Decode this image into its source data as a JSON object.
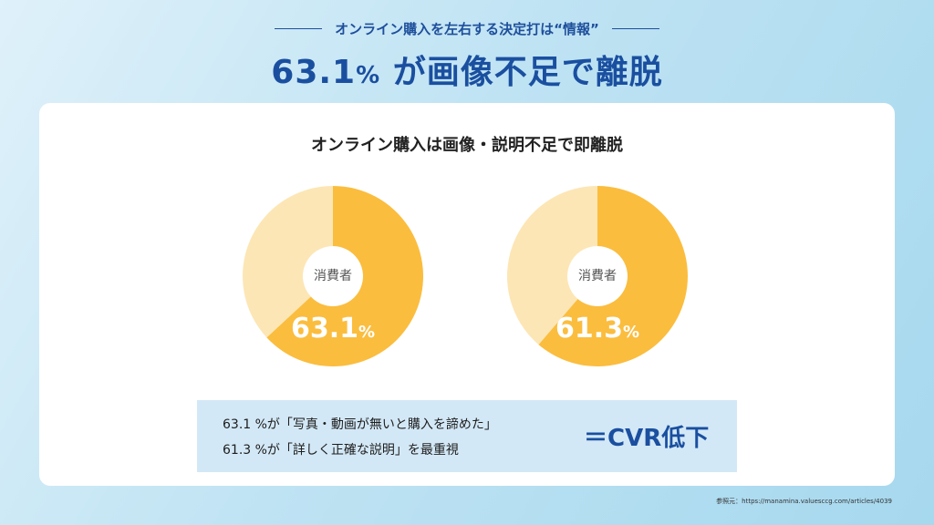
{
  "header": {
    "kicker": "オンライン購入を左右する決定打は“情報”",
    "headline_number": "63.1",
    "headline_percent": "%",
    "headline_text": " が画像不足で離脱"
  },
  "card": {
    "title": "オンライン購入は画像・説明不足で即離脱"
  },
  "donuts": [
    {
      "center_label": "消費者",
      "value": "63.1",
      "percent_sign": "%",
      "fraction": 0.631
    },
    {
      "center_label": "消費者",
      "value": "61.3",
      "percent_sign": "%",
      "fraction": 0.613
    }
  ],
  "colors": {
    "highlight": "#fbbd3e",
    "remainder": "#fde6b5",
    "accent_blue": "#1a4fa0"
  },
  "summary": {
    "line1": "63.1 %が「写真・動画が無いと購入を諦めた」",
    "line2": "61.3 %が「詳しく正確な説明」を最重視",
    "result": "＝CVR低下"
  },
  "source": "参照元：https://manamina.valuesccg.com/articles/4039"
}
